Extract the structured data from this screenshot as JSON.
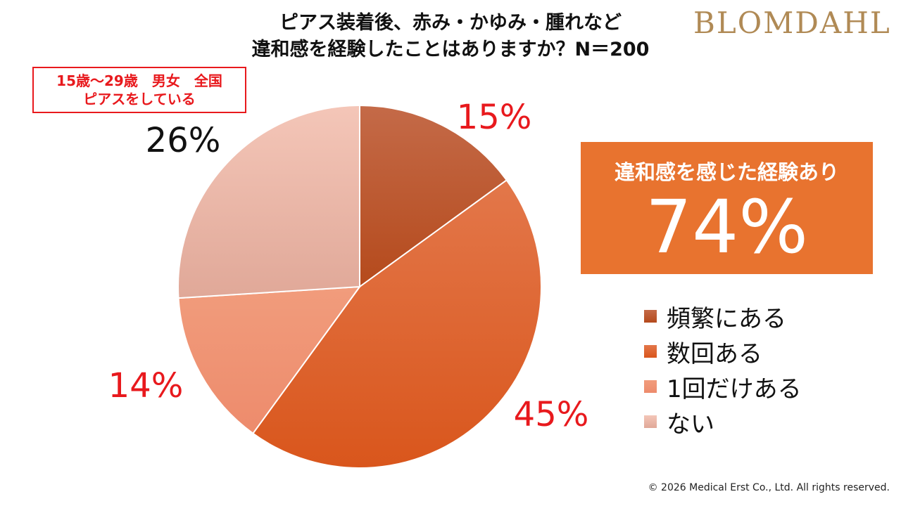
{
  "brand": {
    "name": "BLOMDAHL"
  },
  "badge": {
    "line1": "15歳～29歳　男女　全国",
    "line2": "ピアスをしている"
  },
  "summary": {
    "label": "違和感を感じた経験あり",
    "value": "74%"
  },
  "footer": {
    "copyright": "© 2026 Medical Erst Co., Ltd. All rights reserved."
  },
  "chart_data": {
    "type": "pie",
    "title": "ピアス装着後、赤み・かゆみ・腫れなど 違和感を経験したことはありますか？N＝200",
    "title_lines": [
      "ピアス装着後、赤み・かゆみ・腫れなど",
      "違和感を経験したことはありますか？N＝200"
    ],
    "slices": [
      {
        "name": "頻繁にある",
        "value": 15,
        "label": "15%",
        "color": "#b54a1c",
        "color_light": "#c46a48",
        "label_color": "#e8191d"
      },
      {
        "name": "数回ある",
        "value": 45,
        "label": "45%",
        "color": "#d9561c",
        "color_light": "#e3774a",
        "label_color": "#e8191d"
      },
      {
        "name": "1回だけある",
        "value": 14,
        "label": "14%",
        "color": "#ed8b6c",
        "color_light": "#f19c7c",
        "label_color": "#e8191d"
      },
      {
        "name": "ない",
        "value": 26,
        "label": "26%",
        "color": "#e0a898",
        "color_light": "#f4c6b8",
        "label_color": "#111111"
      }
    ],
    "start_angle_deg": 0,
    "direction": "clockwise",
    "legend_position": "right"
  }
}
